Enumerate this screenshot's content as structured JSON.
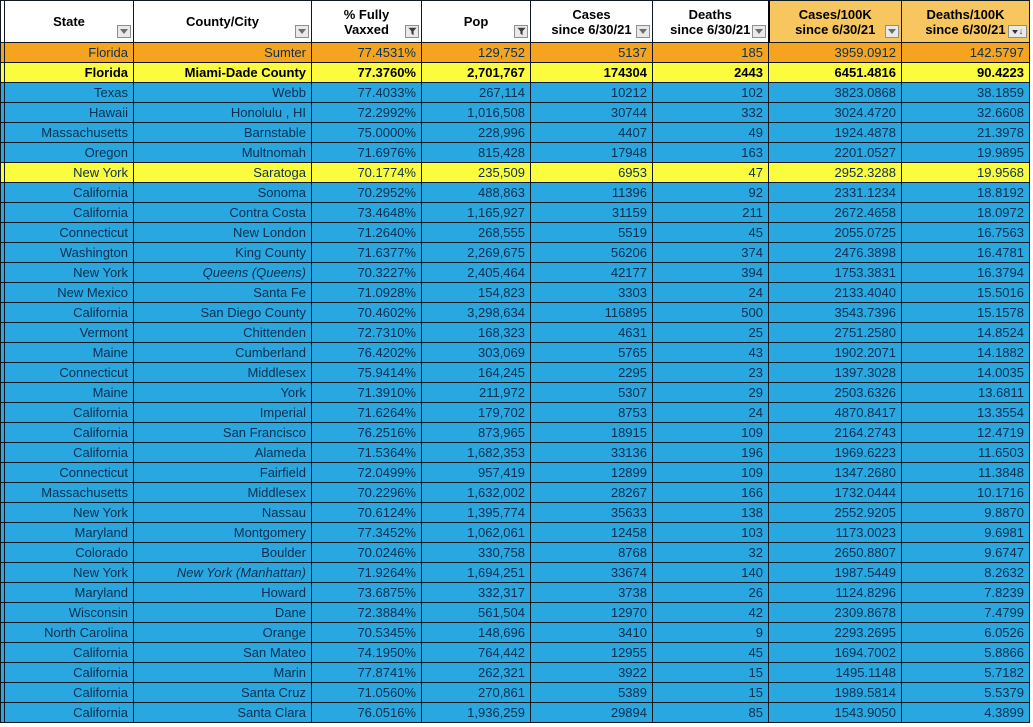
{
  "colors": {
    "row_blue": "#28a7e0",
    "row_orange": "#f6a41f",
    "row_yellow": "#fcfc3e",
    "header_amber": "#f8c65e",
    "grid_border": "#101820",
    "data_text": "#0d3050"
  },
  "table": {
    "columns": [
      {
        "id": "state",
        "lines": [
          "State"
        ],
        "icon": "dropdown",
        "bg": "white"
      },
      {
        "id": "county",
        "lines": [
          "County/City"
        ],
        "icon": "dropdown",
        "bg": "white"
      },
      {
        "id": "vaxxed",
        "lines": [
          "% Fully",
          "Vaxxed"
        ],
        "icon": "funnel",
        "bg": "white"
      },
      {
        "id": "pop",
        "lines": [
          "Pop"
        ],
        "icon": "funnel",
        "bg": "white"
      },
      {
        "id": "cases",
        "lines": [
          "Cases",
          "since 6/30/21"
        ],
        "icon": "dropdown",
        "bg": "white"
      },
      {
        "id": "deaths",
        "lines": [
          "Deaths",
          "since 6/30/21"
        ],
        "icon": "dropdown",
        "bg": "white"
      },
      {
        "id": "cases100k",
        "lines": [
          "Cases/100K",
          "since 6/30/21"
        ],
        "icon": "dropdown",
        "bg": "amber"
      },
      {
        "id": "deaths100k",
        "lines": [
          "Deaths/100K",
          "since 6/30/21"
        ],
        "icon": "sort-desc",
        "bg": "amber"
      }
    ],
    "rows": [
      {
        "cells": [
          "Florida",
          "Sumter",
          "77.4531%",
          "129,752",
          "5137",
          "185",
          "3959.0912",
          "142.5797"
        ],
        "highlight": "orange",
        "bold": false,
        "italic_county": false
      },
      {
        "cells": [
          "Florida",
          "Miami-Dade County",
          "77.3760%",
          "2,701,767",
          "174304",
          "2443",
          "6451.4816",
          "90.4223"
        ],
        "highlight": "yellow",
        "bold": true,
        "italic_county": false
      },
      {
        "cells": [
          "Texas",
          "Webb",
          "77.4033%",
          "267,114",
          "10212",
          "102",
          "3823.0868",
          "38.1859"
        ],
        "highlight": null,
        "bold": false,
        "italic_county": false
      },
      {
        "cells": [
          "Hawaii",
          "Honolulu , HI",
          "72.2992%",
          "1,016,508",
          "30744",
          "332",
          "3024.4720",
          "32.6608"
        ],
        "highlight": null,
        "bold": false,
        "italic_county": false
      },
      {
        "cells": [
          "Massachusetts",
          "Barnstable",
          "75.0000%",
          "228,996",
          "4407",
          "49",
          "1924.4878",
          "21.3978"
        ],
        "highlight": null,
        "bold": false,
        "italic_county": false
      },
      {
        "cells": [
          "Oregon",
          "Multnomah",
          "71.6976%",
          "815,428",
          "17948",
          "163",
          "2201.0527",
          "19.9895"
        ],
        "highlight": null,
        "bold": false,
        "italic_county": false
      },
      {
        "cells": [
          "New York",
          "Saratoga",
          "70.1774%",
          "235,509",
          "6953",
          "47",
          "2952.3288",
          "19.9568"
        ],
        "highlight": "yellow",
        "bold": false,
        "italic_county": false
      },
      {
        "cells": [
          "California",
          "Sonoma",
          "70.2952%",
          "488,863",
          "11396",
          "92",
          "2331.1234",
          "18.8192"
        ],
        "highlight": null,
        "bold": false,
        "italic_county": false
      },
      {
        "cells": [
          "California",
          "Contra Costa",
          "73.4648%",
          "1,165,927",
          "31159",
          "211",
          "2672.4658",
          "18.0972"
        ],
        "highlight": null,
        "bold": false,
        "italic_county": false
      },
      {
        "cells": [
          "Connecticut",
          "New London",
          "71.2640%",
          "268,555",
          "5519",
          "45",
          "2055.0725",
          "16.7563"
        ],
        "highlight": null,
        "bold": false,
        "italic_county": false
      },
      {
        "cells": [
          "Washington",
          "King County",
          "71.6377%",
          "2,269,675",
          "56206",
          "374",
          "2476.3898",
          "16.4781"
        ],
        "highlight": null,
        "bold": false,
        "italic_county": false
      },
      {
        "cells": [
          "New York",
          "Queens  (Queens)",
          "70.3227%",
          "2,405,464",
          "42177",
          "394",
          "1753.3831",
          "16.3794"
        ],
        "highlight": null,
        "bold": false,
        "italic_county": true
      },
      {
        "cells": [
          "New Mexico",
          "Santa Fe",
          "71.0928%",
          "154,823",
          "3303",
          "24",
          "2133.4040",
          "15.5016"
        ],
        "highlight": null,
        "bold": false,
        "italic_county": false
      },
      {
        "cells": [
          "California",
          "San Diego County",
          "70.4602%",
          "3,298,634",
          "116895",
          "500",
          "3543.7396",
          "15.1578"
        ],
        "highlight": null,
        "bold": false,
        "italic_county": false
      },
      {
        "cells": [
          "Vermont",
          "Chittenden",
          "72.7310%",
          "168,323",
          "4631",
          "25",
          "2751.2580",
          "14.8524"
        ],
        "highlight": null,
        "bold": false,
        "italic_county": false
      },
      {
        "cells": [
          "Maine",
          "Cumberland",
          "76.4202%",
          "303,069",
          "5765",
          "43",
          "1902.2071",
          "14.1882"
        ],
        "highlight": null,
        "bold": false,
        "italic_county": false
      },
      {
        "cells": [
          "Connecticut",
          "Middlesex",
          "75.9414%",
          "164,245",
          "2295",
          "23",
          "1397.3028",
          "14.0035"
        ],
        "highlight": null,
        "bold": false,
        "italic_county": false
      },
      {
        "cells": [
          "Maine",
          "York",
          "71.3910%",
          "211,972",
          "5307",
          "29",
          "2503.6326",
          "13.6811"
        ],
        "highlight": null,
        "bold": false,
        "italic_county": false
      },
      {
        "cells": [
          "California",
          "Imperial",
          "71.6264%",
          "179,702",
          "8753",
          "24",
          "4870.8417",
          "13.3554"
        ],
        "highlight": null,
        "bold": false,
        "italic_county": false
      },
      {
        "cells": [
          "California",
          "San Francisco",
          "76.2516%",
          "873,965",
          "18915",
          "109",
          "2164.2743",
          "12.4719"
        ],
        "highlight": null,
        "bold": false,
        "italic_county": false
      },
      {
        "cells": [
          "California",
          "Alameda",
          "71.5364%",
          "1,682,353",
          "33136",
          "196",
          "1969.6223",
          "11.6503"
        ],
        "highlight": null,
        "bold": false,
        "italic_county": false
      },
      {
        "cells": [
          "Connecticut",
          "Fairfield",
          "72.0499%",
          "957,419",
          "12899",
          "109",
          "1347.2680",
          "11.3848"
        ],
        "highlight": null,
        "bold": false,
        "italic_county": false
      },
      {
        "cells": [
          "Massachusetts",
          "Middlesex",
          "70.2296%",
          "1,632,002",
          "28267",
          "166",
          "1732.0444",
          "10.1716"
        ],
        "highlight": null,
        "bold": false,
        "italic_county": false
      },
      {
        "cells": [
          "New York",
          "Nassau",
          "70.6124%",
          "1,395,774",
          "35633",
          "138",
          "2552.9205",
          "9.8870"
        ],
        "highlight": null,
        "bold": false,
        "italic_county": false
      },
      {
        "cells": [
          "Maryland",
          "Montgomery",
          "77.3452%",
          "1,062,061",
          "12458",
          "103",
          "1173.0023",
          "9.6981"
        ],
        "highlight": null,
        "bold": false,
        "italic_county": false
      },
      {
        "cells": [
          "Colorado",
          "Boulder",
          "70.0246%",
          "330,758",
          "8768",
          "32",
          "2650.8807",
          "9.6747"
        ],
        "highlight": null,
        "bold": false,
        "italic_county": false
      },
      {
        "cells": [
          "New York",
          "New York  (Manhattan)",
          "71.9264%",
          "1,694,251",
          "33674",
          "140",
          "1987.5449",
          "8.2632"
        ],
        "highlight": null,
        "bold": false,
        "italic_county": true
      },
      {
        "cells": [
          "Maryland",
          "Howard",
          "73.6875%",
          "332,317",
          "3738",
          "26",
          "1124.8296",
          "7.8239"
        ],
        "highlight": null,
        "bold": false,
        "italic_county": false
      },
      {
        "cells": [
          "Wisconsin",
          "Dane",
          "72.3884%",
          "561,504",
          "12970",
          "42",
          "2309.8678",
          "7.4799"
        ],
        "highlight": null,
        "bold": false,
        "italic_county": false
      },
      {
        "cells": [
          "North Carolina",
          "Orange",
          "70.5345%",
          "148,696",
          "3410",
          "9",
          "2293.2695",
          "6.0526"
        ],
        "highlight": null,
        "bold": false,
        "italic_county": false
      },
      {
        "cells": [
          "California",
          "San Mateo",
          "74.1950%",
          "764,442",
          "12955",
          "45",
          "1694.7002",
          "5.8866"
        ],
        "highlight": null,
        "bold": false,
        "italic_county": false
      },
      {
        "cells": [
          "California",
          "Marin",
          "77.8741%",
          "262,321",
          "3922",
          "15",
          "1495.1148",
          "5.7182"
        ],
        "highlight": null,
        "bold": false,
        "italic_county": false
      },
      {
        "cells": [
          "California",
          "Santa Cruz",
          "71.0560%",
          "270,861",
          "5389",
          "15",
          "1989.5814",
          "5.5379"
        ],
        "highlight": null,
        "bold": false,
        "italic_county": false
      },
      {
        "cells": [
          "California",
          "Santa Clara",
          "76.0516%",
          "1,936,259",
          "29894",
          "85",
          "1543.9050",
          "4.3899"
        ],
        "highlight": null,
        "bold": false,
        "italic_county": false
      }
    ]
  }
}
